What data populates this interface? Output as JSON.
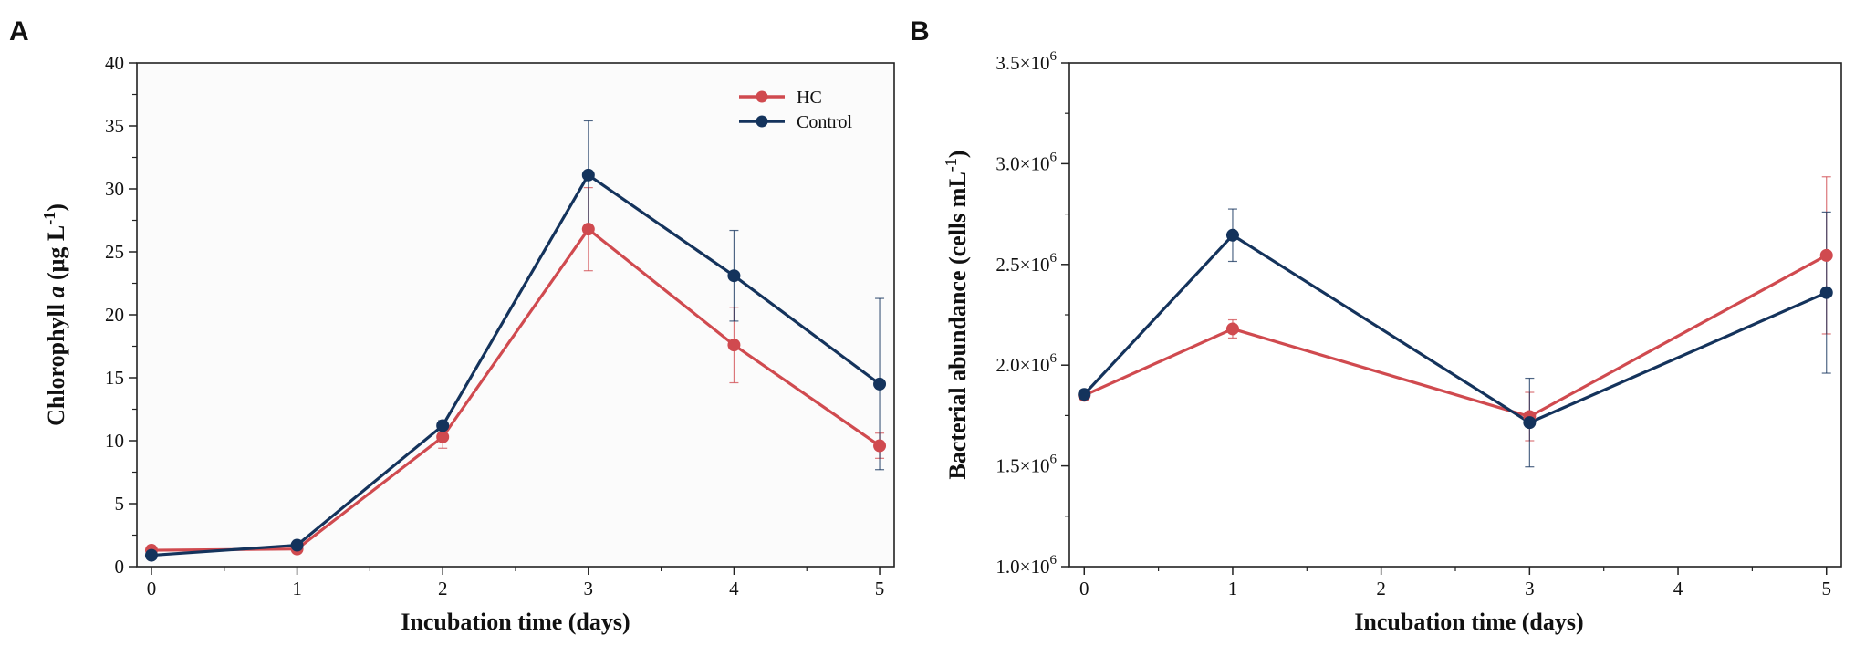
{
  "chart_data": [
    {
      "panel_label": "A",
      "type": "line",
      "xlabel": "Incubation time (days)",
      "ylabel": "Chlorophyll a (μg L⁻¹)",
      "ylabel_parts": {
        "before": "Chlorophyll ",
        "italic": "a",
        "after": " (μg L",
        "sup": "-1",
        "close": ")"
      },
      "xlim": [
        -0.1,
        5.1
      ],
      "ylim": [
        0,
        40
      ],
      "xticks": [
        0,
        1,
        2,
        3,
        4,
        5
      ],
      "yticks": [
        0,
        5,
        10,
        15,
        20,
        25,
        30,
        35,
        40
      ],
      "ytick_labels": [
        "0",
        "5",
        "10",
        "15",
        "20",
        "25",
        "30",
        "35",
        "40"
      ],
      "legend": {
        "position": "top-right",
        "entries": [
          "HC",
          "Control"
        ]
      },
      "series": [
        {
          "name": "HC",
          "color": "#d04a4f",
          "x": [
            0,
            1,
            2,
            3,
            4,
            5
          ],
          "y": [
            1.3,
            1.4,
            10.3,
            26.8,
            17.6,
            9.6
          ],
          "err": [
            0.3,
            0.3,
            0.9,
            3.3,
            3.0,
            1.0
          ]
        },
        {
          "name": "Control",
          "color": "#14335c",
          "x": [
            0,
            1,
            2,
            3,
            4,
            5
          ],
          "y": [
            0.9,
            1.7,
            11.2,
            31.1,
            23.1,
            14.5
          ],
          "err": [
            0.2,
            0.2,
            0.4,
            4.3,
            3.6,
            6.8
          ]
        }
      ]
    },
    {
      "panel_label": "B",
      "type": "line",
      "xlabel": "Incubation time (days)",
      "ylabel": "Bacterial abundance (cells mL⁻¹)",
      "ylabel_parts": {
        "before": "Bacterial abundance (cells mL",
        "sup": "-1",
        "close": ")"
      },
      "xlim": [
        -0.1,
        5.1
      ],
      "ylim": [
        1000000,
        3500000
      ],
      "xticks": [
        0,
        1,
        2,
        3,
        4,
        5
      ],
      "yticks": [
        1000000,
        1500000,
        2000000,
        2500000,
        3000000,
        3500000
      ],
      "ytick_labels": [
        {
          "mantissa": "1.0×10",
          "exp": "6"
        },
        {
          "mantissa": "1.5×10",
          "exp": "6"
        },
        {
          "mantissa": "2.0×10",
          "exp": "6"
        },
        {
          "mantissa": "2.5×10",
          "exp": "6"
        },
        {
          "mantissa": "3.0×10",
          "exp": "6"
        },
        {
          "mantissa": "3.5×10",
          "exp": "6"
        }
      ],
      "series": [
        {
          "name": "HC",
          "color": "#d04a4f",
          "x": [
            0,
            1,
            3,
            5
          ],
          "y": [
            1850000,
            2180000,
            1745000,
            2545000
          ],
          "err": [
            15000,
            45000,
            120000,
            390000
          ]
        },
        {
          "name": "Control",
          "color": "#14335c",
          "x": [
            0,
            1,
            3,
            5
          ],
          "y": [
            1855000,
            2645000,
            1715000,
            2360000
          ],
          "err": [
            15000,
            130000,
            220000,
            400000
          ]
        }
      ]
    }
  ]
}
